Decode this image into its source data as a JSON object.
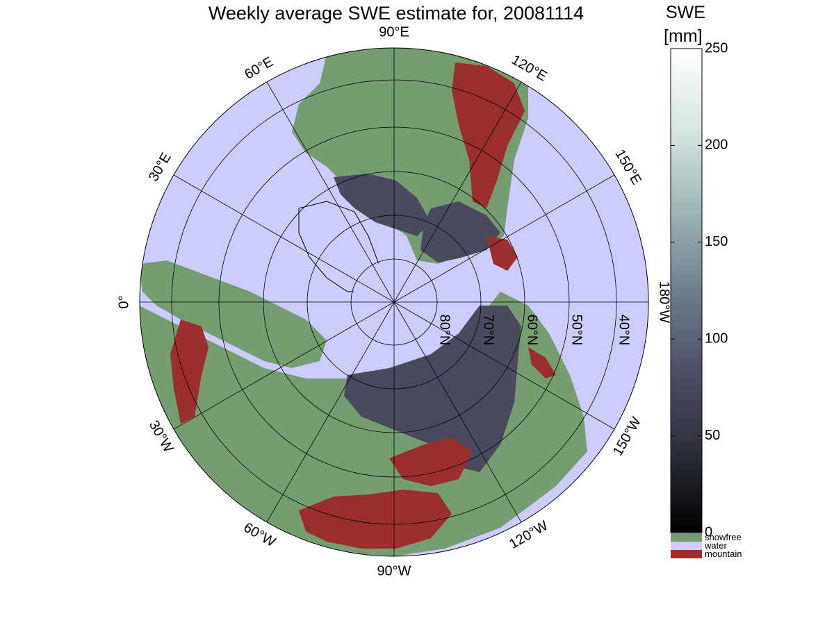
{
  "title": "Weekly average SWE estimate for, 20081114",
  "colorbar": {
    "title_line1": "SWE",
    "title_line2": "[mm]",
    "ticks": [
      "0",
      "50",
      "100",
      "150",
      "200",
      "250"
    ],
    "min": 0,
    "max": 250,
    "colors": [
      "#000000",
      "#2e2e3a",
      "#4f4f68",
      "#6f7e8d",
      "#9fb6b6",
      "#d8e6e2",
      "#ffffff"
    ],
    "categories": [
      {
        "label": "snowfree",
        "color": "#769c72"
      },
      {
        "label": "water",
        "color": "#ccccff"
      },
      {
        "label": "mountain",
        "color": "#9b2f2f"
      }
    ]
  },
  "map": {
    "projection": "north-polar-stereographic",
    "ocean_color": "#ccccff",
    "land_color": "#769c72",
    "snow_color": "#4a4a5e",
    "mountain_color": "#9b2f2f",
    "longitude_labels": [
      {
        "text": "90°W",
        "lon": -90
      },
      {
        "text": "120°W",
        "lon": -120
      },
      {
        "text": "150°W",
        "lon": -150
      },
      {
        "text": "180°W",
        "lon": 180
      },
      {
        "text": "150°E",
        "lon": 150
      },
      {
        "text": "120°E",
        "lon": 120
      },
      {
        "text": "90°E",
        "lon": 90
      },
      {
        "text": "60°E",
        "lon": 60
      },
      {
        "text": "30°E",
        "lon": 30
      },
      {
        "text": "0°",
        "lon": 0
      },
      {
        "text": "30°W",
        "lon": -30
      },
      {
        "text": "60°W",
        "lon": -60
      }
    ],
    "latitude_labels": [
      "80°N",
      "70°N",
      "60°N",
      "50°N",
      "40°N"
    ]
  }
}
